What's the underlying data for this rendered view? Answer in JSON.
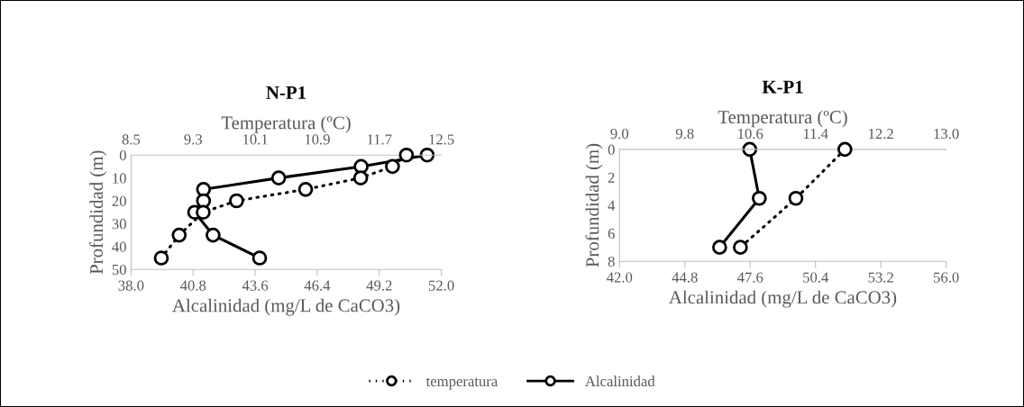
{
  "chart_data": [
    {
      "type": "line",
      "title": "N-P1",
      "xlabel": "Alcalinidad (mg/L de CaCO3)",
      "x2label": "Temperatura (ºC)",
      "ylabel": "Profundidad (m)",
      "series": [
        {
          "name": "temperatura",
          "axis": "x2",
          "color": "#000000",
          "line_style": "dotted",
          "x": [
            12.05,
            11.87,
            11.46,
            10.75,
            9.86,
            9.43,
            9.12,
            8.89
          ],
          "values": [
            0,
            5,
            10,
            15,
            20,
            25,
            35,
            45
          ]
        },
        {
          "name": "Alcalinidad",
          "color": "#000000",
          "line_style": "solid",
          "x": [
            51.36,
            48.38,
            44.66,
            41.27,
            41.27,
            40.87,
            41.7,
            43.8
          ],
          "values": [
            0,
            5,
            10,
            15,
            20,
            25,
            35,
            45
          ]
        }
      ],
      "marker": "circle",
      "grid": false,
      "legend": "bottom",
      "xlim": [
        38.0,
        52.0
      ],
      "xticks": [
        {
          "value": 38.0,
          "label": "38.0"
        },
        {
          "value": 40.8,
          "label": "40.8"
        },
        {
          "value": 43.6,
          "label": "43.6"
        },
        {
          "value": 46.4,
          "label": "46.4"
        },
        {
          "value": 49.2,
          "label": "49.2"
        },
        {
          "value": 52.0,
          "label": "52.0"
        }
      ],
      "x2lim": [
        8.5,
        12.5
      ],
      "x2ticks": [
        8.5,
        9.3,
        10.1,
        10.9,
        11.7,
        12.5
      ],
      "ylim": [
        50,
        0
      ],
      "yticks": [
        0,
        10,
        20,
        30,
        40,
        50
      ]
    },
    {
      "type": "line",
      "title": "K-P1",
      "xlabel": "Alcalinidad (mg/L de CaCO3)",
      "x2label": "Temperatura (ºC)",
      "ylabel": "Profundidad (m)",
      "series": [
        {
          "axis": "x2",
          "color": "#000000",
          "line_style": "dotted",
          "x": [
            11.76,
            11.16,
            10.48
          ],
          "values": [
            0,
            3.5,
            7
          ]
        },
        {
          "color": "#000000",
          "line_style": "solid",
          "x": [
            47.58,
            47.99,
            46.29
          ],
          "values": [
            0,
            3.5,
            7
          ]
        }
      ],
      "marker": "circle",
      "grid": false,
      "xlim": [
        42.0,
        56.0
      ],
      "xticks": [
        {
          "value": 42.0,
          "label": "42.0"
        },
        {
          "value": 44.8,
          "label": "44.8"
        },
        {
          "value": 47.6,
          "label": "47.6"
        },
        {
          "value": 50.4,
          "label": "50.4"
        },
        {
          "value": 53.2,
          "label": "53.2"
        },
        {
          "value": 56.0,
          "label": "56.0"
        }
      ],
      "x2lim": [
        9.0,
        13.0
      ],
      "x2ticks": [
        {
          "value": 9.0,
          "label": "9.0"
        },
        9.8,
        10.6,
        11.4,
        12.2,
        {
          "value": 13.0,
          "label": "13.0"
        }
      ],
      "ylim": [
        8,
        0
      ],
      "yticks": [
        0,
        2,
        4,
        6,
        8
      ]
    }
  ]
}
